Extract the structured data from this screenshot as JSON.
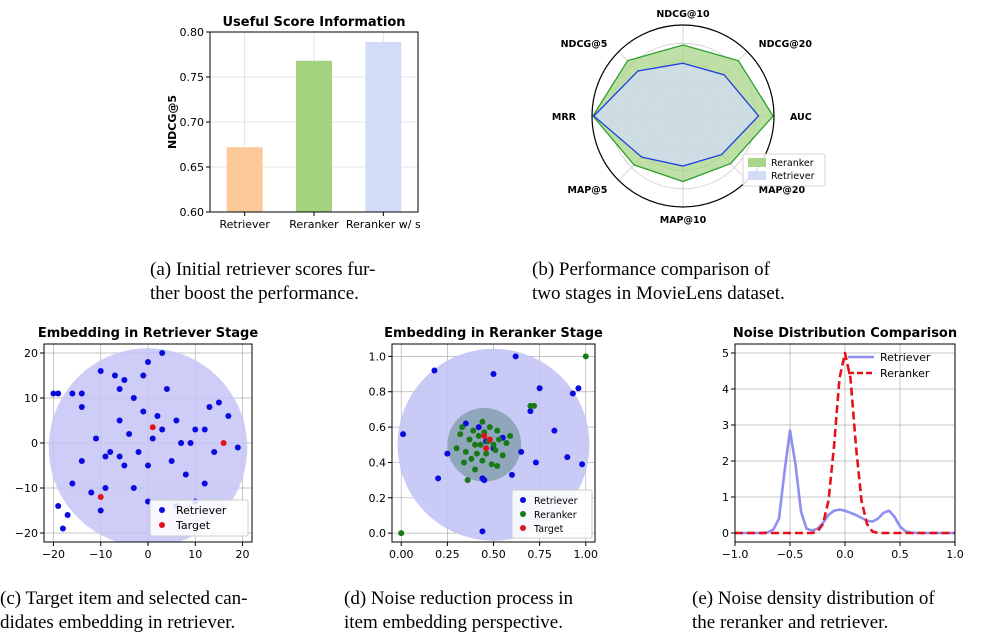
{
  "chart_data": [
    {
      "type": "bar",
      "title": "Useful Score Information",
      "ylabel": "NDCG@5",
      "categories": [
        "Retriever",
        "Reranker",
        "Reranker w/ s"
      ],
      "values": [
        0.672,
        0.768,
        0.789
      ],
      "colors": [
        "#fcc999",
        "#a3d37f",
        "#d2dcf7"
      ],
      "ylim": [
        0.6,
        0.8
      ],
      "yticks": [
        "0.60",
        "0.65",
        "0.70",
        "0.75",
        "0.80"
      ],
      "grid": true
    },
    {
      "type": "radar",
      "axes": [
        "NDCG@10",
        "NDCG@20",
        "AUC",
        "MAP@20",
        "MAP@10",
        "MAP@5",
        "MRR",
        "NDCG@5"
      ],
      "series": [
        {
          "name": "Reranker",
          "values": [
            0.78,
            0.86,
            0.99,
            0.74,
            0.72,
            0.76,
            0.99,
            0.86
          ],
          "fill": "#a8d58a",
          "stroke": "#2ca02c"
        },
        {
          "name": "Retriever",
          "values": [
            0.58,
            0.64,
            0.83,
            0.6,
            0.55,
            0.64,
            0.98,
            0.7
          ],
          "fill": "#d2dcf7",
          "stroke": "#1f3fe0"
        }
      ],
      "legend": "lower-right"
    },
    {
      "type": "scatter",
      "title": "Embedding in Retriever Stage",
      "xlim": [
        -22,
        22
      ],
      "ylim": [
        -22,
        22
      ],
      "xticks": [
        "−20",
        "−10",
        "0",
        "10",
        "20"
      ],
      "yticks": [
        "20",
        "10",
        "0",
        "−10",
        "−20"
      ],
      "grid": true,
      "legend": "lower-right",
      "series": [
        {
          "name": "Retriever",
          "color": "#0a0adf",
          "points": [
            [
              -19,
              11
            ],
            [
              -16,
              11
            ],
            [
              -14,
              11
            ],
            [
              -14,
              8
            ],
            [
              -10,
              16
            ],
            [
              -7,
              15
            ],
            [
              -6,
              12
            ],
            [
              -5,
              14
            ],
            [
              -3,
              10
            ],
            [
              -1,
              15
            ],
            [
              0,
              18
            ],
            [
              3,
              20
            ],
            [
              -11,
              1
            ],
            [
              -9,
              -3
            ],
            [
              -6,
              -3
            ],
            [
              -14,
              -4
            ],
            [
              -16,
              -9
            ],
            [
              -12,
              -11
            ],
            [
              -9,
              -10
            ],
            [
              -5,
              -5
            ],
            [
              -2,
              -2
            ],
            [
              0,
              -5
            ],
            [
              -4,
              2
            ],
            [
              -6,
              5
            ],
            [
              -1,
              7
            ],
            [
              1,
              1
            ],
            [
              2,
              6
            ],
            [
              4,
              12
            ],
            [
              6,
              5
            ],
            [
              7,
              0
            ],
            [
              9,
              0
            ],
            [
              10,
              3
            ],
            [
              12,
              3
            ],
            [
              13,
              8
            ],
            [
              15,
              9
            ],
            [
              17,
              6
            ],
            [
              19,
              -1
            ],
            [
              5,
              -4
            ],
            [
              8,
              -7
            ],
            [
              12,
              -9
            ],
            [
              14,
              -2
            ],
            [
              10,
              -13
            ],
            [
              6,
              -14
            ],
            [
              0,
              -13
            ],
            [
              -10,
              -15
            ],
            [
              -17,
              -16
            ],
            [
              -19,
              -14
            ],
            [
              -18,
              -19
            ],
            [
              -3,
              -10
            ],
            [
              -8,
              -2
            ],
            [
              3,
              3
            ],
            [
              -20,
              11
            ]
          ]
        },
        {
          "name": "Target",
          "color": "#e4121a",
          "points": [
            [
              1,
              3.5
            ],
            [
              16,
              0
            ],
            [
              -10,
              -12
            ]
          ]
        }
      ],
      "regions": [
        {
          "cx": 0,
          "cy": -1,
          "r": 21,
          "color": "#c4c4f6"
        }
      ]
    },
    {
      "type": "scatter",
      "title": "Embedding in Reranker Stage",
      "xlim": [
        -0.05,
        1.05
      ],
      "ylim": [
        -0.05,
        1.07
      ],
      "xticks": [
        "0.00",
        "0.25",
        "0.50",
        "0.75",
        "1.00"
      ],
      "yticks": [
        "1.0",
        "0.8",
        "0.6",
        "0.4",
        "0.2",
        "0.0"
      ],
      "grid": true,
      "legend": "lower-right",
      "series": [
        {
          "name": "Retriever",
          "color": "#0a0adf",
          "points": [
            [
              0.18,
              0.92
            ],
            [
              0.5,
              0.9
            ],
            [
              0.62,
              1.0
            ],
            [
              0.01,
              0.56
            ],
            [
              0.2,
              0.31
            ],
            [
              0.25,
              0.45
            ],
            [
              0.35,
              0.62
            ],
            [
              0.44,
              0.31
            ],
            [
              0.45,
              0.3
            ],
            [
              0.55,
              0.54
            ],
            [
              0.6,
              0.33
            ],
            [
              0.65,
              0.46
            ],
            [
              0.7,
              0.69
            ],
            [
              0.73,
              0.4
            ],
            [
              0.75,
              0.82
            ],
            [
              0.83,
              0.58
            ],
            [
              0.9,
              0.43
            ],
            [
              0.93,
              0.79
            ],
            [
              0.96,
              0.82
            ],
            [
              0.98,
              0.39
            ],
            [
              0.44,
              0.01
            ],
            [
              0.42,
              0.6
            ],
            [
              0.5,
              0.48
            ],
            [
              0.46,
              0.52
            ]
          ]
        },
        {
          "name": "Reranker",
          "color": "#177a17",
          "points": [
            [
              0.3,
              0.48
            ],
            [
              0.32,
              0.56
            ],
            [
              0.33,
              0.6
            ],
            [
              0.35,
              0.46
            ],
            [
              0.37,
              0.53
            ],
            [
              0.38,
              0.42
            ],
            [
              0.39,
              0.58
            ],
            [
              0.4,
              0.5
            ],
            [
              0.41,
              0.45
            ],
            [
              0.42,
              0.55
            ],
            [
              0.43,
              0.5
            ],
            [
              0.44,
              0.41
            ],
            [
              0.44,
              0.63
            ],
            [
              0.45,
              0.57
            ],
            [
              0.46,
              0.45
            ],
            [
              0.47,
              0.52
            ],
            [
              0.48,
              0.6
            ],
            [
              0.49,
              0.39
            ],
            [
              0.5,
              0.5
            ],
            [
              0.51,
              0.47
            ],
            [
              0.52,
              0.58
            ],
            [
              0.53,
              0.53
            ],
            [
              0.55,
              0.44
            ],
            [
              0.57,
              0.51
            ],
            [
              0.59,
              0.55
            ],
            [
              0.34,
              0.4
            ],
            [
              0.4,
              0.36
            ],
            [
              0.52,
              0.38
            ],
            [
              0.36,
              0.3
            ],
            [
              0.7,
              0.72
            ],
            [
              0.72,
              0.72
            ],
            [
              0.0,
              0.0
            ],
            [
              1.0,
              1.0
            ]
          ]
        },
        {
          "name": "Target",
          "color": "#e4121a",
          "points": [
            [
              0.45,
              0.55
            ],
            [
              0.48,
              0.53
            ],
            [
              0.46,
              0.48
            ]
          ]
        }
      ],
      "regions": [
        {
          "cx": 0.5,
          "cy": 0.5,
          "r": 0.52,
          "color": "#c4c4f6"
        },
        {
          "cx": 0.45,
          "cy": 0.5,
          "r": 0.2,
          "color": "#8aa3b4"
        }
      ]
    },
    {
      "type": "line",
      "title": "Noise Distribution Comparison",
      "xlim": [
        -1.0,
        1.0
      ],
      "ylim": [
        -0.25,
        5.25
      ],
      "xticks": [
        "−1.0",
        "−0.5",
        "0.0",
        "0.5",
        "1.0"
      ],
      "yticks": [
        "5",
        "4",
        "3",
        "2",
        "1",
        "0"
      ],
      "grid": true,
      "legend": "top-right",
      "series": [
        {
          "name": "Retriever",
          "color": "#8f8ff2",
          "style": "solid",
          "x": [
            -1.0,
            -0.75,
            -0.7,
            -0.65,
            -0.6,
            -0.55,
            -0.5,
            -0.45,
            -0.4,
            -0.35,
            -0.3,
            -0.25,
            -0.2,
            -0.15,
            -0.1,
            -0.05,
            0.0,
            0.05,
            0.1,
            0.15,
            0.2,
            0.25,
            0.3,
            0.35,
            0.4,
            0.45,
            0.5,
            0.55,
            0.6,
            0.7,
            1.0
          ],
          "y": [
            0,
            0,
            0.02,
            0.1,
            0.4,
            1.7,
            2.85,
            1.9,
            0.6,
            0.12,
            0.07,
            0.12,
            0.28,
            0.5,
            0.62,
            0.65,
            0.62,
            0.56,
            0.5,
            0.42,
            0.34,
            0.32,
            0.4,
            0.56,
            0.62,
            0.45,
            0.18,
            0.05,
            0.01,
            0,
            0
          ]
        },
        {
          "name": "Reranker",
          "color": "#e4121a",
          "style": "dashed",
          "x": [
            -1.0,
            -0.3,
            -0.25,
            -0.2,
            -0.15,
            -0.1,
            -0.05,
            0.0,
            0.05,
            0.1,
            0.15,
            0.2,
            0.25,
            0.3,
            1.0
          ],
          "y": [
            0,
            0,
            0.04,
            0.25,
            0.9,
            2.4,
            4.3,
            5.0,
            4.3,
            2.4,
            0.9,
            0.25,
            0.04,
            0,
            0
          ]
        }
      ]
    }
  ],
  "captions": {
    "a": [
      "(a) Initial retriever scores fur-",
      "ther boost the performance."
    ],
    "b": [
      "(b) Performance comparison of",
      "two stages in MovieLens dataset."
    ],
    "c": [
      "(c) Target item and selected can-",
      "didates embedding in retriever."
    ],
    "d": [
      "(d) Noise reduction process in",
      "item embedding perspective."
    ],
    "e": [
      "(e) Noise density distribution of",
      "the reranker and retriever."
    ]
  }
}
